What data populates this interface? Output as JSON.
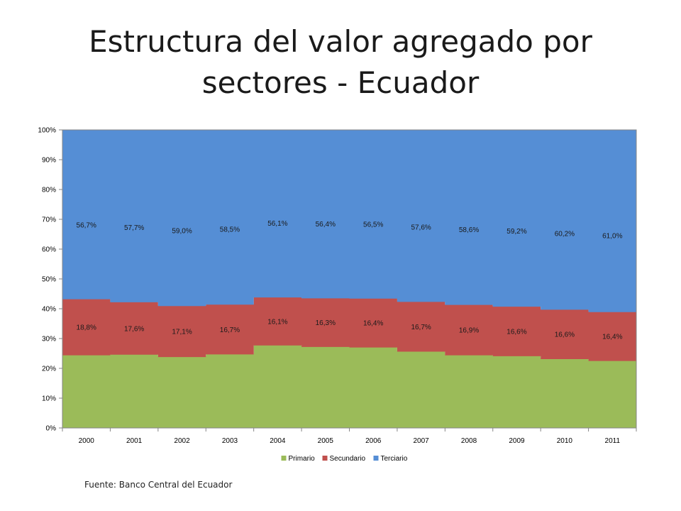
{
  "title_lines": [
    "Estructura del valor agregado por",
    "sectores - Ecuador"
  ],
  "source": "Fuente: Banco Central del Ecuador",
  "colors": {
    "primario": "#9bbb59",
    "secundario": "#c0504d",
    "terciario": "#558ed5"
  },
  "chart_data": {
    "type": "area",
    "stacked": "percent",
    "title": "",
    "xlabel": "",
    "ylabel": "",
    "categories": [
      "2000",
      "2001",
      "2002",
      "2003",
      "2004",
      "2005",
      "2006",
      "2007",
      "2008",
      "2009",
      "2010",
      "2011"
    ],
    "ylim": [
      0,
      100
    ],
    "yticks": [
      "0%",
      "10%",
      "20%",
      "30%",
      "40%",
      "50%",
      "60%",
      "70%",
      "80%",
      "90%",
      "100%"
    ],
    "legend_position": "bottom",
    "series": [
      {
        "name": "Primario",
        "values": [
          24.5,
          24.7,
          23.9,
          24.8,
          27.8,
          27.3,
          27.1,
          25.7,
          24.5,
          24.2,
          23.2,
          22.6
        ]
      },
      {
        "name": "Secundario",
        "values": [
          18.8,
          17.6,
          17.1,
          16.7,
          16.1,
          16.3,
          16.4,
          16.7,
          16.9,
          16.6,
          16.6,
          16.4
        ],
        "data_labels": [
          "18,8%",
          "17,6%",
          "17,1%",
          "16,7%",
          "16,1%",
          "16,3%",
          "16,4%",
          "16,7%",
          "16,9%",
          "16,6%",
          "16,6%",
          "16,4%"
        ]
      },
      {
        "name": "Terciario",
        "values": [
          56.7,
          57.7,
          59.0,
          58.5,
          56.1,
          56.4,
          56.5,
          57.6,
          58.6,
          59.2,
          60.2,
          61.0
        ],
        "data_labels": [
          "56,7%",
          "57,7%",
          "59,0%",
          "58,5%",
          "56,1%",
          "56,4%",
          "56,5%",
          "57,6%",
          "58,6%",
          "59,2%",
          "60,2%",
          "61,0%"
        ]
      }
    ]
  }
}
